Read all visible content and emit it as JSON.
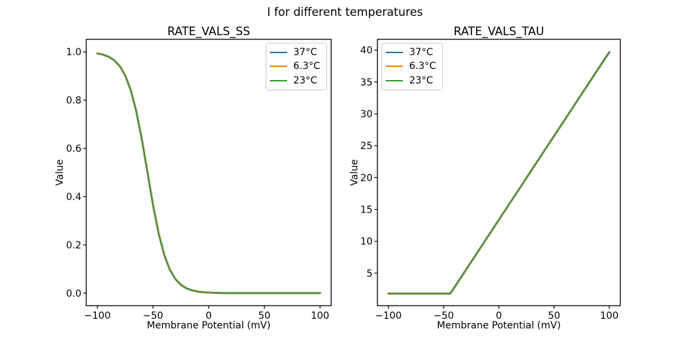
{
  "figure": {
    "suptitle": "I for different temperatures",
    "background": "#ffffff",
    "text_color": "#000000"
  },
  "chart_data": [
    {
      "type": "line",
      "title": "RATE_VALS_SS",
      "xlabel": "Membrane Potential (mV)",
      "ylabel": "Value",
      "xlim": [
        -110,
        110
      ],
      "ylim": [
        -0.052,
        1.052
      ],
      "grid": false,
      "legend_position": "upper right",
      "xtick_values": [
        -100,
        -50,
        0,
        50,
        100
      ],
      "xtick_labels": [
        "−100",
        "−50",
        "0",
        "50",
        "100"
      ],
      "ytick_values": [
        0.0,
        0.2,
        0.4,
        0.6,
        0.8,
        1.0
      ],
      "ytick_labels": [
        "0.0",
        "0.2",
        "0.4",
        "0.6",
        "0.8",
        "1.0"
      ],
      "x": [
        -100,
        -95,
        -90,
        -85,
        -80,
        -75,
        -70,
        -65,
        -60,
        -55,
        -50,
        -45,
        -40,
        -35,
        -30,
        -25,
        -20,
        -15,
        -10,
        -5,
        0,
        5,
        10,
        15,
        20,
        25,
        30,
        35,
        40,
        45,
        50,
        55,
        60,
        65,
        70,
        75,
        80,
        85,
        90,
        95,
        100
      ],
      "series": [
        {
          "name": "37°C",
          "color": "#1f77b4",
          "values": [
            0.9933,
            0.9884,
            0.98,
            0.9656,
            0.9415,
            0.9022,
            0.8411,
            0.7524,
            0.6354,
            0.5,
            0.3646,
            0.2477,
            0.1589,
            0.0978,
            0.0585,
            0.0344,
            0.02,
            0.0116,
            0.0067,
            0.0039,
            0.0022,
            0.0013,
            0.0007,
            0.0004,
            0.0002,
            0.0001,
            0.0001,
            0,
            0,
            0,
            0,
            0,
            0,
            0,
            0,
            0,
            0,
            0,
            0,
            0,
            0
          ]
        },
        {
          "name": "6.3°C",
          "color": "#ff7f0e",
          "values": [
            0.9933,
            0.9884,
            0.98,
            0.9656,
            0.9415,
            0.9022,
            0.8411,
            0.7524,
            0.6354,
            0.5,
            0.3646,
            0.2477,
            0.1589,
            0.0978,
            0.0585,
            0.0344,
            0.02,
            0.0116,
            0.0067,
            0.0039,
            0.0022,
            0.0013,
            0.0007,
            0.0004,
            0.0002,
            0.0001,
            0.0001,
            0,
            0,
            0,
            0,
            0,
            0,
            0,
            0,
            0,
            0,
            0,
            0,
            0,
            0
          ]
        },
        {
          "name": "23°C",
          "color": "#2ca02c",
          "values": [
            0.9933,
            0.9884,
            0.98,
            0.9656,
            0.9415,
            0.9022,
            0.8411,
            0.7524,
            0.6354,
            0.5,
            0.3646,
            0.2477,
            0.1589,
            0.0978,
            0.0585,
            0.0344,
            0.02,
            0.0116,
            0.0067,
            0.0039,
            0.0022,
            0.0013,
            0.0007,
            0.0004,
            0.0002,
            0.0001,
            0.0001,
            0,
            0,
            0,
            0,
            0,
            0,
            0,
            0,
            0,
            0,
            0,
            0,
            0,
            0
          ]
        }
      ]
    },
    {
      "type": "line",
      "title": "RATE_VALS_TAU",
      "xlabel": "Membrane Potential (mV)",
      "ylabel": "Value",
      "xlim": [
        -110,
        110
      ],
      "ylim": [
        -0.1,
        41.7
      ],
      "grid": false,
      "legend_position": "upper left",
      "xtick_values": [
        -100,
        -50,
        0,
        50,
        100
      ],
      "xtick_labels": [
        "−100",
        "−50",
        "0",
        "50",
        "100"
      ],
      "ytick_values": [
        5,
        10,
        15,
        20,
        25,
        30,
        35,
        40
      ],
      "ytick_labels": [
        "5",
        "10",
        "15",
        "20",
        "25",
        "30",
        "35",
        "40"
      ],
      "series": [
        {
          "name": "37°C",
          "color": "#1f77b4",
          "x": [
            -100,
            -44,
            100
          ],
          "values": [
            1.8,
            1.8,
            39.7
          ]
        },
        {
          "name": "6.3°C",
          "color": "#ff7f0e",
          "x": [
            -100,
            -44,
            100
          ],
          "values": [
            1.8,
            1.8,
            39.7
          ]
        },
        {
          "name": "23°C",
          "color": "#2ca02c",
          "x": [
            -100,
            -44,
            100
          ],
          "values": [
            1.8,
            1.8,
            39.7
          ]
        }
      ]
    }
  ]
}
